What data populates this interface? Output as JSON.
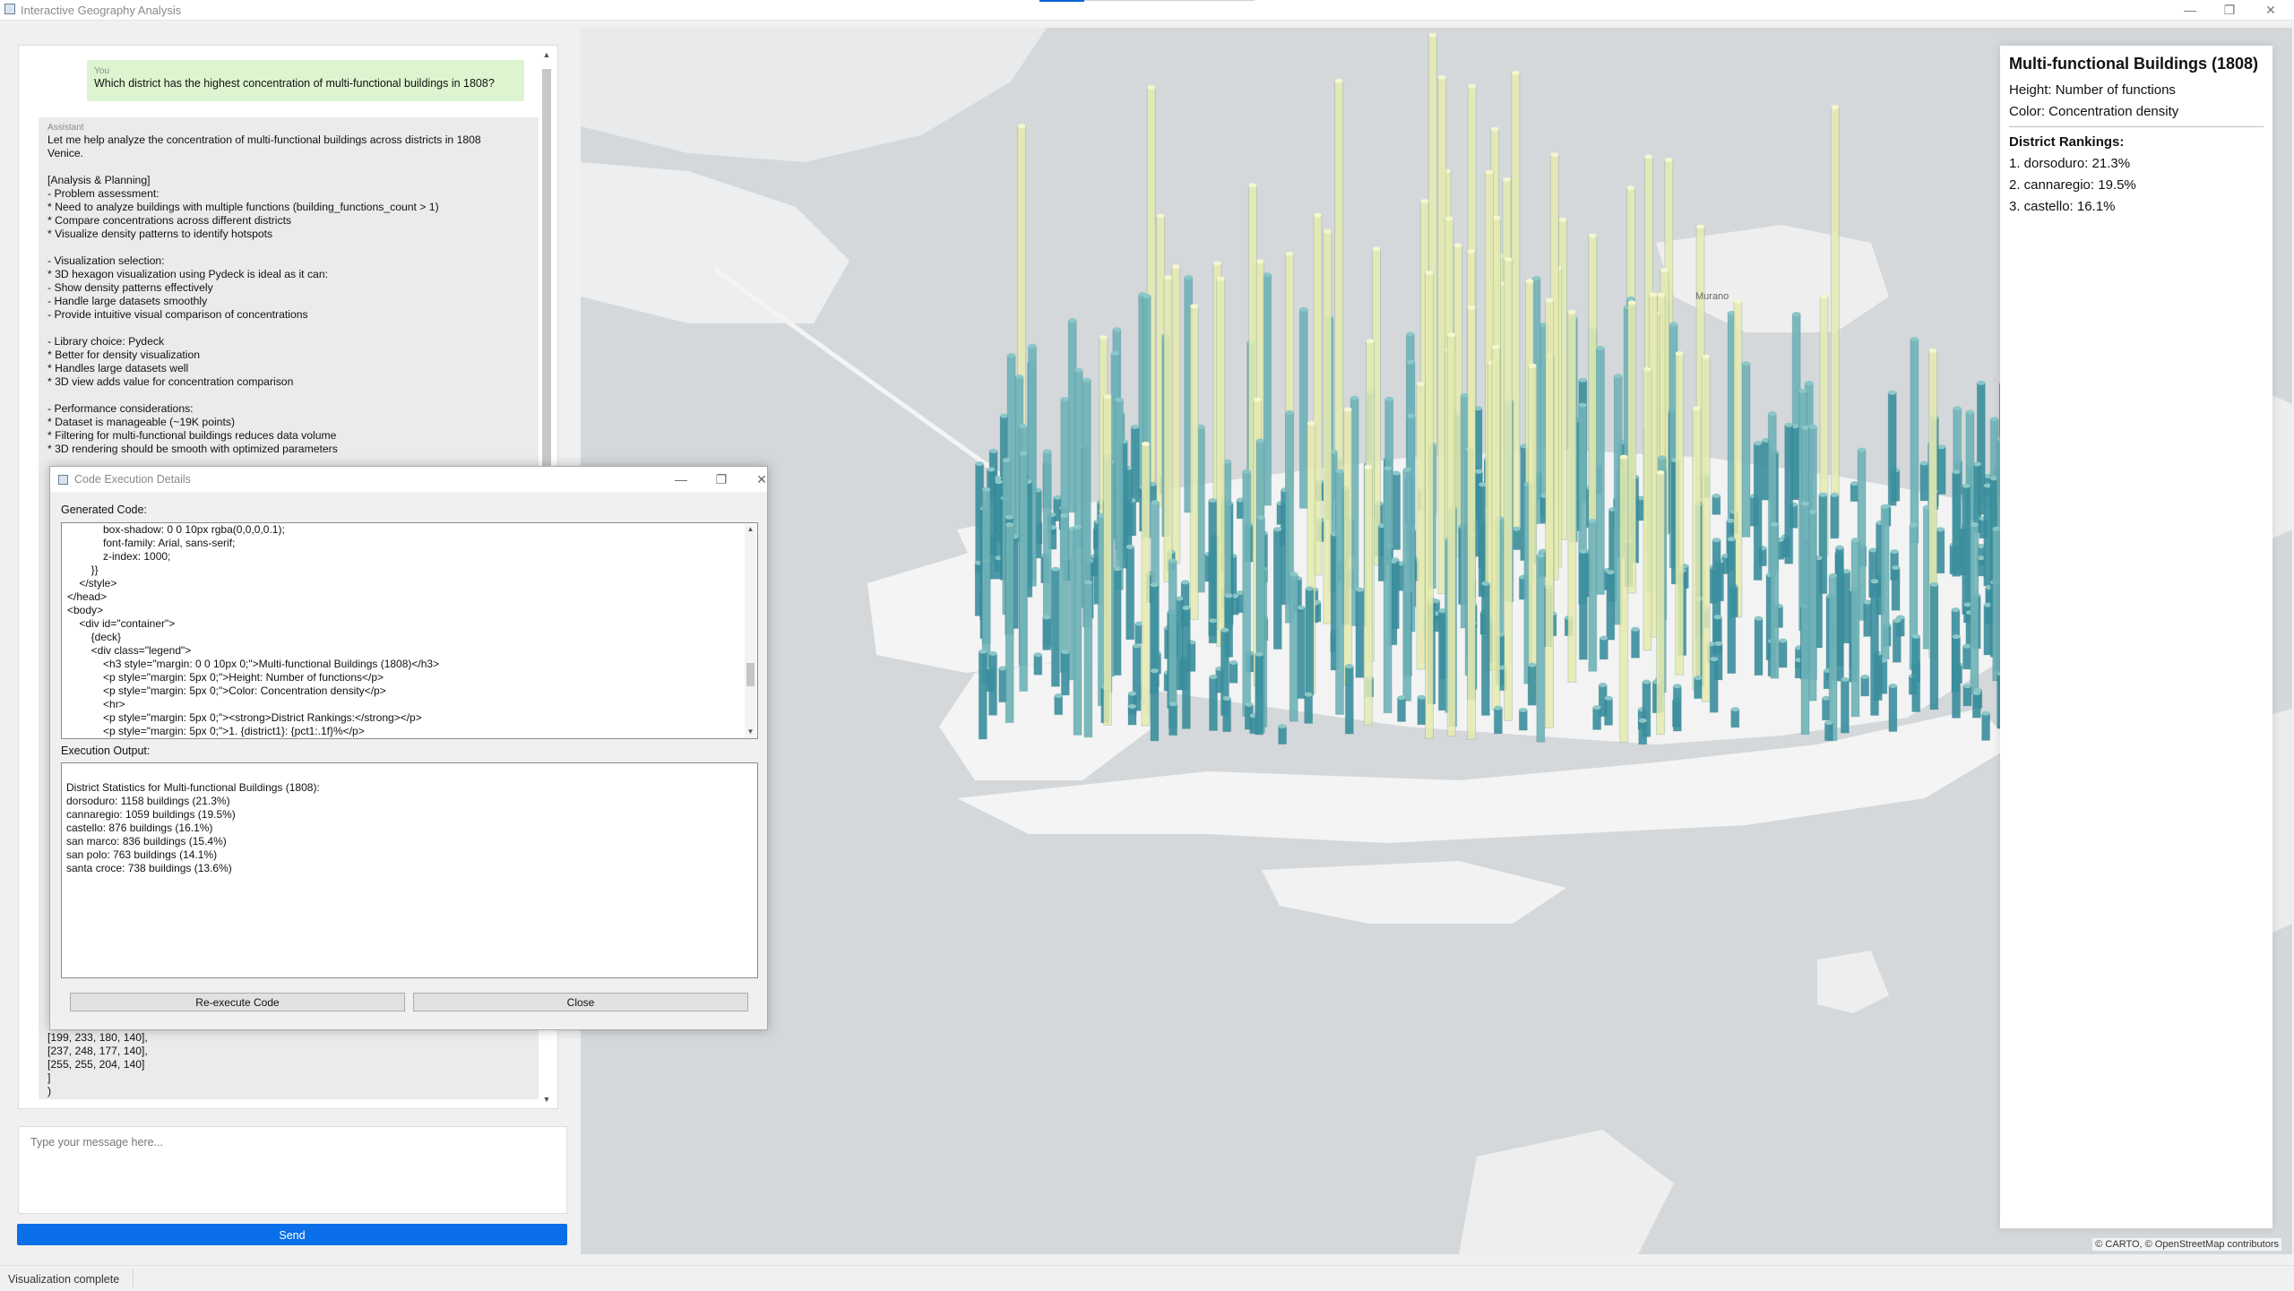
{
  "window": {
    "title": "Interactive Geography Analysis",
    "minimize": "—",
    "restore": "❐",
    "close": "✕"
  },
  "chat": {
    "user_message": {
      "role": "You",
      "text": "Which district has the highest concentration of multi-functional buildings in 1808?"
    },
    "assistant_message": {
      "role": "Assistant",
      "text": "Let me help analyze the concentration of multi-functional buildings across districts in 1808\nVenice.\n\n[Analysis & Planning]\n- Problem assessment:\n* Need to analyze buildings with multiple functions (building_functions_count > 1)\n* Compare concentrations across different districts\n* Visualize density patterns to identify hotspots\n\n- Visualization selection:\n* 3D hexagon visualization using Pydeck is ideal as it can:\n- Show density patterns effectively\n- Handle large datasets smoothly\n- Provide intuitive visual comparison of concentrations\n\n- Library choice: Pydeck\n* Better for density visualization\n* Handles large datasets well\n* 3D view adds value for concentration comparison\n\n- Performance considerations:\n* Dataset is manageable (~19K points)\n* Filtering for multi-functional buildings reduces data volume\n* 3D rendering should be smooth with optimized parameters",
      "tail": "[199, 233, 180, 140],\n[237, 248, 177, 140],\n[255, 255, 204, 140]\n]\n)"
    },
    "input_placeholder": "Type your message here...",
    "send_label": "Send"
  },
  "status": {
    "text": "Visualization complete"
  },
  "dialog": {
    "title": "Code Execution Details",
    "generated_label": "Generated Code:",
    "code": "            box-shadow: 0 0 10px rgba(0,0,0,0.1);\n            font-family: Arial, sans-serif;\n            z-index: 1000;\n        }}\n    </style>\n</head>\n<body>\n    <div id=\"container\">\n        {deck}\n        <div class=\"legend\">\n            <h3 style=\"margin: 0 0 10px 0;\">Multi-functional Buildings (1808)</h3>\n            <p style=\"margin: 5px 0;\">Height: Number of functions</p>\n            <p style=\"margin: 5px 0;\">Color: Concentration density</p>\n            <hr>\n            <p style=\"margin: 5px 0;\"><strong>District Rankings:</strong></p>\n            <p style=\"margin: 5px 0;\">1. {district1}: {pct1:.1f}%</p>",
    "output_label": "Execution Output:",
    "output": "District Statistics for Multi-functional Buildings (1808):\ndorsoduro: 1158 buildings (21.3%)\ncannaregio: 1059 buildings (19.5%)\ncastello: 876 buildings (16.1%)\nsan marco: 836 buildings (15.4%)\nsan polo: 763 buildings (14.1%)\nsanta croce: 738 buildings (13.6%)",
    "reexecute_label": "Re-execute Code",
    "close_label": "Close"
  },
  "map": {
    "place_label": "Murano",
    "attribution": "© CARTO, © OpenStreetMap contributors",
    "legend": {
      "title": "Multi-functional Buildings (1808)",
      "height_text": "Height: Number of functions",
      "color_text": "Color: Concentration density",
      "rankings_heading": "District Rankings:",
      "rankings": [
        "1. dorsoduro: 21.3%",
        "2. cannaregio: 19.5%",
        "3. castello: 16.1%"
      ]
    },
    "colors": {
      "water": "#d4d8db",
      "land": "#f4f4f4",
      "low": "#3a8f9e",
      "mid": "#6fb3b8",
      "high": "#e6ebb0"
    }
  }
}
